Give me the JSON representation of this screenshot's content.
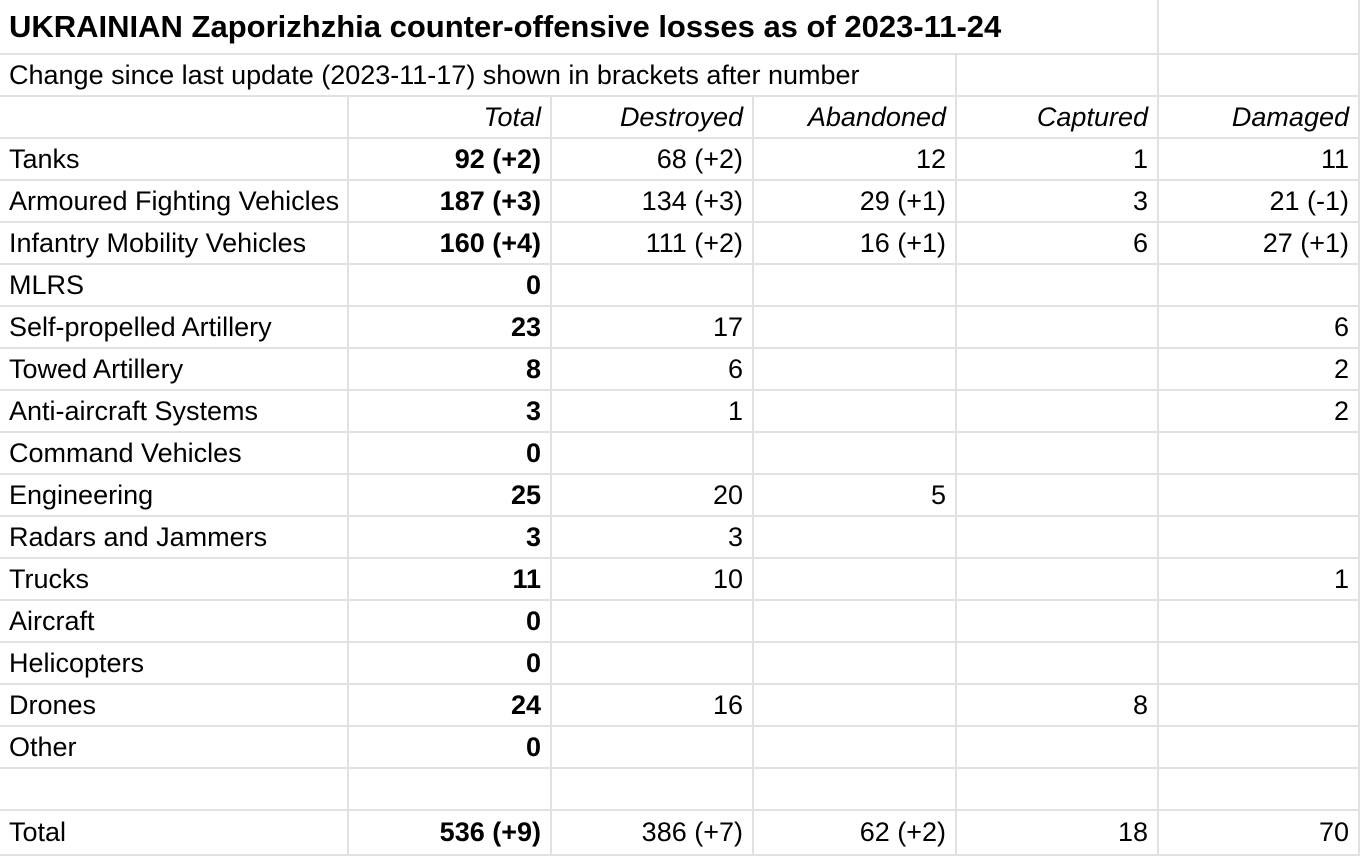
{
  "colors": {
    "background": "#ffffff",
    "gridline": "#e1e1e1",
    "text": "#000000"
  },
  "chart_data": {
    "type": "table",
    "title": "UKRAINIAN Zaporizhzhia counter-offensive losses as of 2023-11-24",
    "subtitle": "Change since last update (2023-11-17) shown in brackets after number",
    "columns": [
      "Total",
      "Destroyed",
      "Abandoned",
      "Captured",
      "Damaged"
    ],
    "rows": [
      {
        "label": "Tanks",
        "cells": [
          "92 (+2)",
          "68 (+2)",
          "12",
          "1",
          "11"
        ]
      },
      {
        "label": "Armoured Fighting Vehicles",
        "cells": [
          "187 (+3)",
          "134 (+3)",
          "29 (+1)",
          "3",
          "21 (-1)"
        ]
      },
      {
        "label": "Infantry Mobility Vehicles",
        "cells": [
          "160 (+4)",
          "111 (+2)",
          "16 (+1)",
          "6",
          "27 (+1)"
        ]
      },
      {
        "label": "MLRS",
        "cells": [
          "0",
          "",
          "",
          "",
          ""
        ]
      },
      {
        "label": "Self-propelled Artillery",
        "cells": [
          "23",
          "17",
          "",
          "",
          "6"
        ]
      },
      {
        "label": "Towed Artillery",
        "cells": [
          "8",
          "6",
          "",
          "",
          "2"
        ]
      },
      {
        "label": "Anti-aircraft Systems",
        "cells": [
          "3",
          "1",
          "",
          "",
          "2"
        ]
      },
      {
        "label": "Command Vehicles",
        "cells": [
          "0",
          "",
          "",
          "",
          ""
        ]
      },
      {
        "label": "Engineering",
        "cells": [
          "25",
          "20",
          "5",
          "",
          ""
        ]
      },
      {
        "label": "Radars and Jammers",
        "cells": [
          "3",
          "3",
          "",
          "",
          ""
        ]
      },
      {
        "label": "Trucks",
        "cells": [
          "11",
          "10",
          "",
          "",
          "1"
        ]
      },
      {
        "label": "Aircraft",
        "cells": [
          "0",
          "",
          "",
          "",
          ""
        ]
      },
      {
        "label": "Helicopters",
        "cells": [
          "0",
          "",
          "",
          "",
          ""
        ]
      },
      {
        "label": "Drones",
        "cells": [
          "24",
          "16",
          "",
          "8",
          ""
        ]
      },
      {
        "label": "Other",
        "cells": [
          "0",
          "",
          "",
          "",
          ""
        ]
      },
      {
        "label": "",
        "cells": [
          "",
          "",
          "",
          "",
          ""
        ]
      },
      {
        "label": "Total",
        "cells": [
          "536 (+9)",
          "386 (+7)",
          "62 (+2)",
          "18",
          "70"
        ]
      }
    ]
  }
}
